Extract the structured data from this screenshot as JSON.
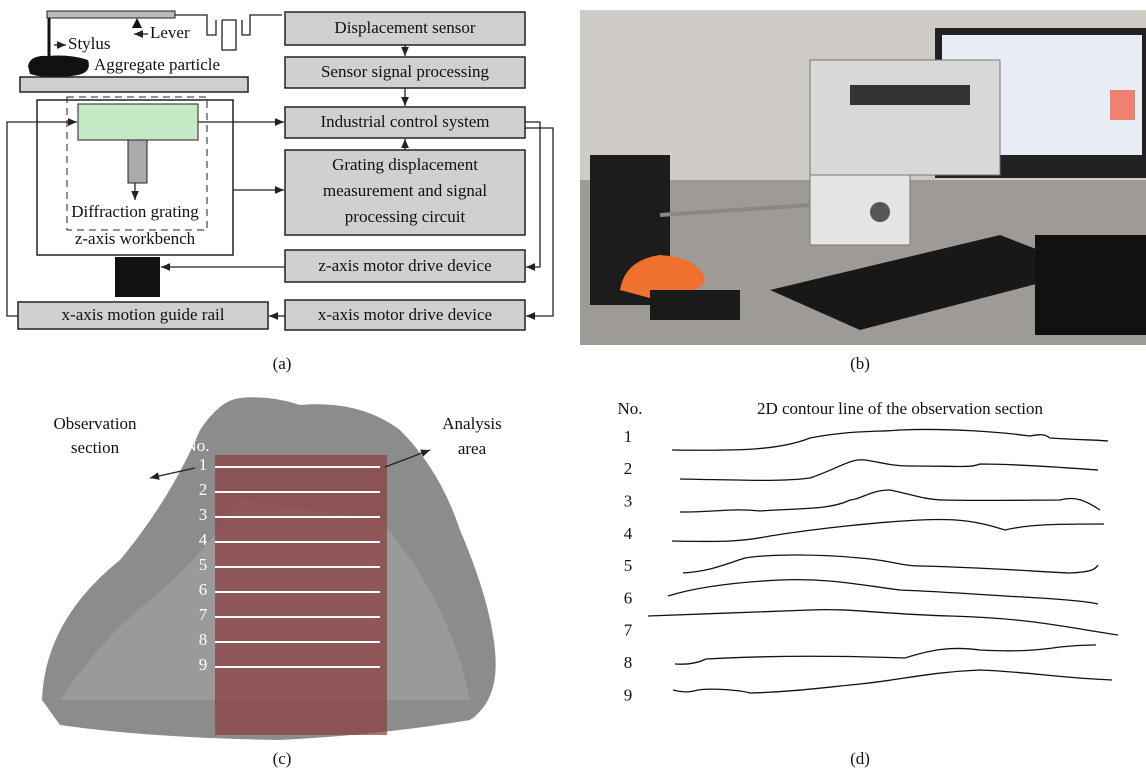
{
  "panel_a": {
    "caption": "(a)",
    "stylus": "Stylus",
    "lever": "Lever",
    "aggregate": "Aggregate particle",
    "grating": "Diffraction grating",
    "workbench": "z-axis workbench",
    "guide_rail": "x-axis motion guide rail",
    "boxes": {
      "sensor": "Displacement sensor",
      "signal": "Sensor signal processing",
      "control": "Industrial control system",
      "grating_circuit": [
        "Grating displacement",
        "measurement and signal",
        "processing circuit"
      ],
      "z_motor": "z-axis motor drive device",
      "x_motor": "x-axis motor drive device"
    }
  },
  "panel_b": {
    "caption": "(b)"
  },
  "panel_c": {
    "caption": "(c)",
    "no": "No.",
    "observation": [
      "Observation",
      "section"
    ],
    "analysis": [
      "Analysis",
      "area"
    ],
    "numbers": [
      "1",
      "2",
      "3",
      "4",
      "5",
      "6",
      "7",
      "8",
      "9"
    ]
  },
  "panel_d": {
    "caption": "(d)",
    "no": "No.",
    "header": "2D contour line of the observation section",
    "numbers": [
      "1",
      "2",
      "3",
      "4",
      "5",
      "6",
      "7",
      "8",
      "9"
    ]
  }
}
